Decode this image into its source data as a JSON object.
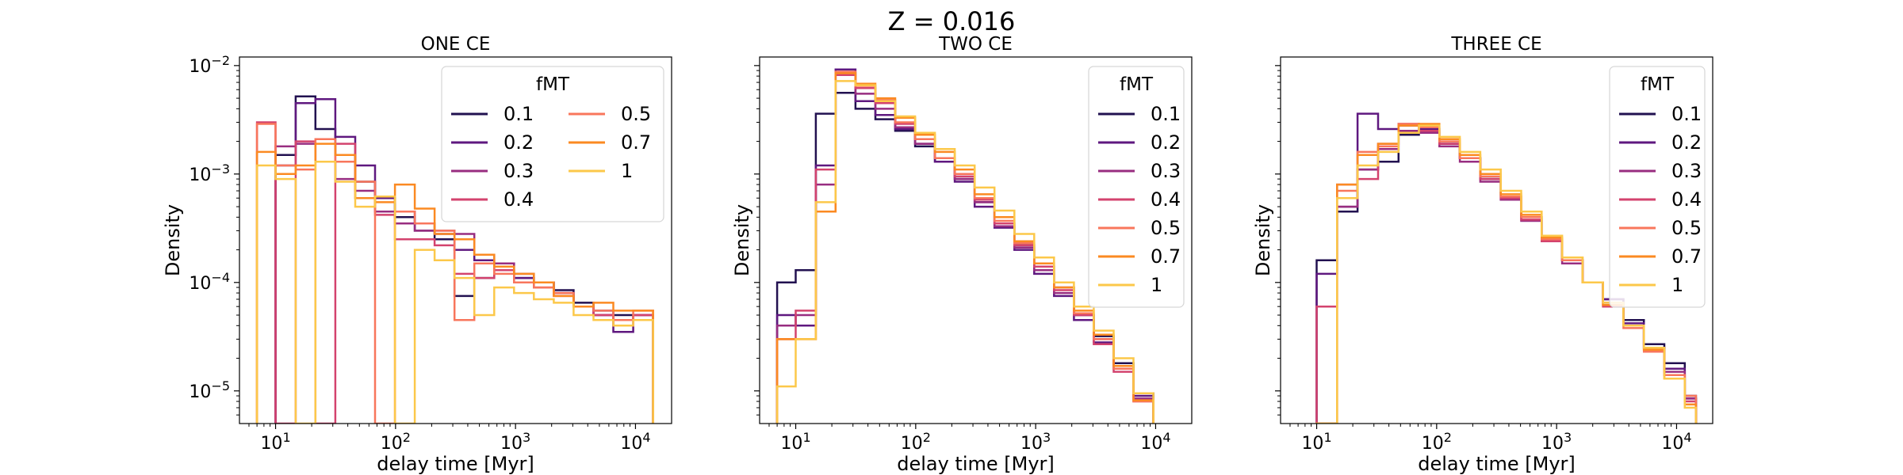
{
  "suptitle": "Z = 0.016",
  "palette": {
    "0.1": "#221150",
    "0.2": "#5f187f",
    "0.3": "#982d80",
    "0.4": "#d3436e",
    "0.5": "#f8765c",
    "0.7": "#fb8a22",
    "1": "#fcc84a"
  },
  "chart_data": [
    {
      "type": "histogram",
      "title": "ONE CE",
      "xlabel": "delay time [Myr]",
      "ylabel": "Density",
      "xscale": "log",
      "yscale": "log",
      "xlim": [
        5,
        20000
      ],
      "ylim": [
        5e-06,
        0.012
      ],
      "x_ticks": [
        "10^1",
        "10^2",
        "10^3",
        "10^4"
      ],
      "y_ticks": [
        "10^-5",
        "10^-4",
        "10^-3",
        "10^-2"
      ],
      "legend": {
        "title": "fMT",
        "placement": "upper right",
        "columns": 2
      },
      "bin_edges": [
        7.0,
        10.0,
        14.7,
        21.5,
        31.5,
        46.1,
        67.5,
        98.8,
        144.6,
        211.7,
        309.9,
        453.7,
        664.2,
        972.3,
        1423.3,
        2083.6,
        3050.1,
        4465.0,
        6536.3,
        9568.4,
        14007.0
      ],
      "series": [
        {
          "name": "0.1",
          "values": [
            null,
            0.0015,
            0.0052,
            0.0026,
            0.0015,
            0.00085,
            0.0006,
            0.0004,
            0.0003,
            0.00025,
            7.5e-05,
            0.00011,
            0.00015,
            0.00011,
            0.0001,
            8.5e-05,
            6.5e-05,
            5.5e-05,
            5e-05,
            4.5e-05
          ]
        },
        {
          "name": "0.2",
          "values": [
            null,
            0.0012,
            0.0045,
            0.0049,
            0.0022,
            0.0012,
            0.0006,
            0.00045,
            0.00035,
            0.00028,
            0.0002,
            0.00016,
            0.00013,
            0.00011,
            0.0001,
            8e-05,
            6e-05,
            5e-05,
            3.5e-05,
            5e-05
          ]
        },
        {
          "name": "0.3",
          "values": [
            null,
            0.0018,
            0.0019,
            0.0013,
            0.0009,
            0.0007,
            0.00045,
            0.00035,
            0.0003,
            0.0003,
            0.00028,
            0.00018,
            0.00015,
            0.00012,
            0.0001,
            8e-05,
            6e-05,
            5e-05,
            4.5e-05,
            5e-05
          ]
        },
        {
          "name": "0.4",
          "values": [
            0.003,
            5e-06,
            0.002,
            5e-06,
            0.0019,
            0.0006,
            0.00042,
            0.00025,
            0.00025,
            0.00022,
            0.00012,
            0.00011,
            0.00013,
            0.0001,
            9e-05,
            7.5e-05,
            6e-05,
            5e-05,
            4e-05,
            5e-05
          ]
        },
        {
          "name": "0.5",
          "values": [
            0.0029,
            0.0012,
            0.0011,
            0.0021,
            0.0013,
            0.00085,
            5e-06,
            0.00045,
            0.00035,
            0.0003,
            4.5e-05,
            0.00015,
            0.00012,
            0.0001,
            9e-05,
            8e-05,
            6e-05,
            5.5e-05,
            4.5e-05,
            5.5e-05
          ]
        },
        {
          "name": "0.7",
          "values": [
            0.0016,
            0.001,
            0.0012,
            0.0019,
            0.0015,
            0.0006,
            0.00055,
            0.0008,
            0.00048,
            0.00028,
            0.00025,
            0.00018,
            0.00014,
            0.00012,
            0.0001,
            7.5e-05,
            6e-05,
            6.5e-05,
            5.5e-05,
            5.5e-05
          ]
        },
        {
          "name": "1",
          "values": [
            0.0012,
            0.0009,
            5e-06,
            0.0013,
            0.00085,
            0.0005,
            0.00062,
            5e-06,
            0.0002,
            0.00016,
            0.00011,
            5e-05,
            9e-05,
            8e-05,
            7e-05,
            6.5e-05,
            5e-05,
            4.5e-05,
            4e-05,
            4.5e-05
          ]
        }
      ]
    },
    {
      "type": "histogram",
      "title": "TWO CE",
      "xlabel": "delay time [Myr]",
      "ylabel": "Density",
      "xscale": "log",
      "yscale": "log",
      "xlim": [
        5,
        20000
      ],
      "ylim": [
        5e-06,
        0.012
      ],
      "x_ticks": [
        "10^1",
        "10^2",
        "10^3",
        "10^4"
      ],
      "y_ticks": [],
      "legend": {
        "title": "fMT",
        "placement": "upper right",
        "columns": 1
      },
      "bin_edges": [
        7.0,
        10.0,
        14.7,
        21.5,
        31.5,
        46.1,
        67.5,
        98.8,
        144.6,
        211.7,
        309.9,
        453.7,
        664.2,
        972.3,
        1423.3,
        2083.6,
        3050.1,
        4465.0,
        6536.3,
        9568.4
      ],
      "series": [
        {
          "name": "0.1",
          "values": [
            0.0001,
            0.00013,
            0.0036,
            0.0056,
            0.004,
            0.0032,
            0.0025,
            0.0018,
            0.0013,
            0.0009,
            0.00055,
            0.00035,
            0.00022,
            0.00014,
            9e-05,
            5e-05,
            3.2e-05,
            1.8e-05,
            9.5e-06
          ]
        },
        {
          "name": "0.2",
          "values": [
            5e-05,
            4e-05,
            0.0012,
            0.0092,
            0.0047,
            0.0035,
            0.0026,
            0.0019,
            0.0013,
            0.00085,
            0.0005,
            0.00032,
            0.0002,
            0.00012,
            7.5e-05,
            4.5e-05,
            2.8e-05,
            1.6e-05,
            9e-06
          ]
        },
        {
          "name": "0.3",
          "values": [
            4e-05,
            5e-05,
            0.0008,
            0.0085,
            0.0055,
            0.004,
            0.0027,
            0.0019,
            0.0014,
            0.0009,
            0.00055,
            0.00033,
            0.00021,
            0.00013,
            8e-05,
            5e-05,
            3e-05,
            1.7e-05,
            8.5e-06
          ]
        },
        {
          "name": "0.4",
          "values": [
            3e-05,
            5.5e-05,
            0.0011,
            0.0082,
            0.0062,
            0.0045,
            0.0029,
            0.0021,
            0.0014,
            0.00095,
            0.00058,
            0.00035,
            0.00022,
            0.00014,
            8.5e-05,
            5e-05,
            2.7e-05,
            1.5e-05,
            8e-06
          ]
        },
        {
          "name": "0.5",
          "values": [
            3e-05,
            3e-05,
            0.00045,
            0.0088,
            0.0065,
            0.0048,
            0.003,
            0.0021,
            0.0014,
            0.001,
            0.0006,
            0.00037,
            0.00023,
            0.00015,
            9e-05,
            5.2e-05,
            3e-05,
            1.6e-05,
            8e-06
          ]
        },
        {
          "name": "0.7",
          "values": [
            3e-05,
            3e-05,
            0.00045,
            0.0085,
            0.0068,
            0.005,
            0.0033,
            0.0023,
            0.0016,
            0.0011,
            0.00065,
            0.0004,
            0.00024,
            0.00015,
            9e-05,
            5.5e-05,
            3.3e-05,
            1.7e-05,
            8.2e-06
          ]
        },
        {
          "name": "1",
          "values": [
            1.1e-05,
            3e-05,
            0.00055,
            0.0072,
            0.0066,
            0.0047,
            0.0034,
            0.0024,
            0.0017,
            0.0012,
            0.00075,
            0.00046,
            0.00028,
            0.00017,
            0.0001,
            6e-05,
            3.6e-05,
            2e-05,
            9.5e-06
          ]
        }
      ]
    },
    {
      "type": "histogram",
      "title": "THREE CE",
      "xlabel": "delay time [Myr]",
      "ylabel": "Density",
      "xscale": "log",
      "yscale": "log",
      "xlim": [
        5,
        20000
      ],
      "ylim": [
        5e-06,
        0.012
      ],
      "x_ticks": [
        "10^1",
        "10^2",
        "10^3",
        "10^4"
      ],
      "y_ticks": [],
      "legend": {
        "title": "fMT",
        "placement": "upper right",
        "columns": 1
      },
      "bin_edges": [
        10.0,
        14.8,
        21.9,
        32.5,
        48.1,
        71.2,
        105.4,
        156.1,
        231.1,
        342.2,
        506.7,
        750.3,
        1111.0,
        1645.0,
        2435.7,
        3606.6,
        5340.2,
        7907.1,
        11707.9,
        14500.0
      ],
      "series": [
        {
          "name": "0.1",
          "values": [
            0.00016,
            0.00045,
            0.0011,
            0.0013,
            0.0023,
            0.0026,
            0.0019,
            0.0014,
            0.0009,
            0.00062,
            0.0004,
            0.00024,
            0.00016,
            0.0001,
            7e-05,
            4.5e-05,
            2.7e-05,
            1.8e-05,
            9e-06
          ]
        },
        {
          "name": "0.2",
          "values": [
            0.00012,
            0.0005,
            0.0036,
            0.0026,
            0.0028,
            0.0026,
            0.0019,
            0.0014,
            0.0009,
            0.00058,
            0.0004,
            0.00025,
            0.00016,
            0.0001,
            7e-05,
            4.2e-05,
            2.5e-05,
            1.6e-05,
            8.5e-06
          ]
        },
        {
          "name": "0.3",
          "values": [
            5e-06,
            0.0005,
            0.0011,
            0.0017,
            0.0025,
            0.0024,
            0.0018,
            0.0013,
            0.00085,
            0.00058,
            0.00037,
            0.00024,
            0.00015,
            0.0001,
            6.5e-05,
            4e-05,
            2.5e-05,
            1.5e-05,
            8.5e-06
          ]
        },
        {
          "name": "0.4",
          "values": [
            6e-05,
            0.0008,
            0.0009,
            0.0019,
            0.0029,
            0.0025,
            0.0019,
            0.0014,
            0.0009,
            0.0006,
            0.00038,
            0.00024,
            0.00016,
            0.0001,
            6e-05,
            4e-05,
            2.4e-05,
            1.4e-05,
            8e-06
          ]
        },
        {
          "name": "0.5",
          "values": [
            5e-06,
            0.0007,
            0.0016,
            0.0018,
            0.0029,
            0.0027,
            0.002,
            0.0014,
            0.00095,
            0.00062,
            0.0004,
            0.00025,
            0.00016,
            0.0001,
            6.2e-05,
            3.8e-05,
            2.3e-05,
            1.4e-05,
            9e-06
          ]
        },
        {
          "name": "0.7",
          "values": [
            5e-06,
            0.0008,
            0.0015,
            0.0019,
            0.0028,
            0.0029,
            0.0021,
            0.0015,
            0.001,
            0.00065,
            0.00042,
            0.00026,
            0.00017,
            0.0001,
            6.2e-05,
            4e-05,
            2.4e-05,
            1.3e-05,
            7.5e-06
          ]
        },
        {
          "name": "1",
          "values": [
            5e-06,
            0.0006,
            0.0012,
            0.0016,
            0.0024,
            0.0028,
            0.0022,
            0.0016,
            0.0011,
            0.0007,
            0.00045,
            0.00027,
            0.00017,
            0.0001,
            6.5e-05,
            4e-05,
            2.5e-05,
            1.3e-05,
            7e-06
          ]
        }
      ]
    }
  ]
}
